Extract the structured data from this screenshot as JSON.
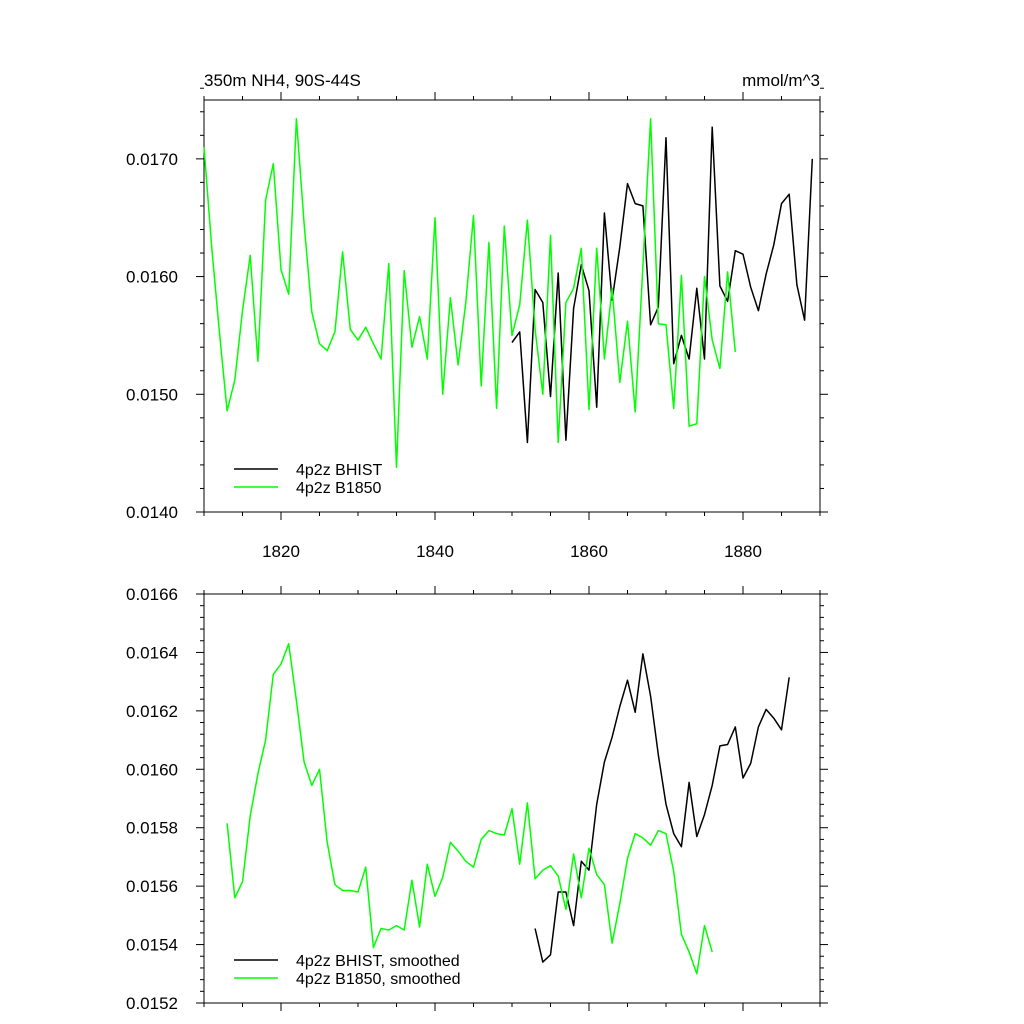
{
  "chart_data": [
    {
      "type": "line",
      "title_left": "350m NH4, 90S-44S",
      "title_right": "mmol/m^3",
      "xlabel": "",
      "ylabel": "",
      "xlim": [
        1810,
        1890
      ],
      "ylim": [
        0.014,
        0.0175
      ],
      "xticks": [
        1820,
        1840,
        1860,
        1880
      ],
      "xtick_labels": [
        "1820",
        "1840",
        "1860",
        "1880"
      ],
      "yticks": [
        0.014,
        0.015,
        0.016,
        0.017
      ],
      "ytick_labels": [
        "0.0140",
        "0.0150",
        "0.0160",
        "0.0170"
      ],
      "legend": {
        "position": "bottom-left",
        "entries": [
          "4p2z BHIST",
          "4p2z B1850"
        ]
      },
      "series": [
        {
          "name": "4p2z BHIST",
          "color": "#000000",
          "x": [
            1850,
            1851,
            1852,
            1853,
            1854,
            1855,
            1856,
            1857,
            1858,
            1859,
            1860,
            1861,
            1862,
            1863,
            1864,
            1865,
            1866,
            1867,
            1868,
            1869,
            1870,
            1871,
            1872,
            1873,
            1874,
            1875,
            1876,
            1877,
            1878,
            1879,
            1880,
            1881,
            1882,
            1883,
            1884,
            1885,
            1886,
            1887,
            1888,
            1889
          ],
          "y": [
            0.01544,
            0.01553,
            0.01459,
            0.01589,
            0.01578,
            0.01498,
            0.01603,
            0.01461,
            0.01573,
            0.0161,
            0.01588,
            0.01489,
            0.01654,
            0.0158,
            0.01625,
            0.01679,
            0.01662,
            0.0166,
            0.01559,
            0.01574,
            0.01718,
            0.01526,
            0.0155,
            0.0153,
            0.0159,
            0.0153,
            0.01727,
            0.01592,
            0.01579,
            0.01622,
            0.01619,
            0.01591,
            0.01571,
            0.01602,
            0.01627,
            0.01662,
            0.0167,
            0.01593,
            0.01563,
            0.017
          ]
        },
        {
          "name": "4p2z B1850",
          "color": "#00ff00",
          "x": [
            1810,
            1811,
            1812,
            1813,
            1814,
            1815,
            1816,
            1817,
            1818,
            1819,
            1820,
            1821,
            1822,
            1823,
            1824,
            1825,
            1826,
            1827,
            1828,
            1829,
            1830,
            1831,
            1832,
            1833,
            1834,
            1835,
            1836,
            1837,
            1838,
            1839,
            1840,
            1841,
            1842,
            1843,
            1844,
            1845,
            1846,
            1847,
            1848,
            1849,
            1850,
            1851,
            1852,
            1853,
            1854,
            1855,
            1856,
            1857,
            1858,
            1859,
            1860,
            1861,
            1862,
            1863,
            1864,
            1865,
            1866,
            1867,
            1868,
            1869,
            1870,
            1871,
            1872,
            1873,
            1874,
            1875,
            1876,
            1877,
            1878,
            1879
          ],
          "y": [
            0.0171,
            0.01625,
            0.01553,
            0.01486,
            0.01512,
            0.01571,
            0.01618,
            0.01528,
            0.01665,
            0.01696,
            0.01606,
            0.01585,
            0.01734,
            0.01645,
            0.0157,
            0.01543,
            0.01537,
            0.01553,
            0.01621,
            0.01555,
            0.01546,
            0.01557,
            0.01543,
            0.0153,
            0.01611,
            0.01438,
            0.01605,
            0.0154,
            0.01566,
            0.0153,
            0.0165,
            0.015,
            0.01582,
            0.01525,
            0.01578,
            0.01652,
            0.01507,
            0.01629,
            0.01488,
            0.01643,
            0.0155,
            0.01576,
            0.01648,
            0.01555,
            0.015,
            0.01635,
            0.01459,
            0.01578,
            0.0159,
            0.01624,
            0.01487,
            0.01624,
            0.0153,
            0.0159,
            0.0151,
            0.01562,
            0.01485,
            0.01609,
            0.01734,
            0.0156,
            0.01559,
            0.01488,
            0.01601,
            0.01473,
            0.01475,
            0.016,
            0.01546,
            0.01522,
            0.01604,
            0.01536
          ]
        }
      ]
    },
    {
      "type": "line",
      "xlabel": "",
      "ylabel": "",
      "xlim": [
        1810,
        1890
      ],
      "ylim": [
        0.0152,
        0.0166
      ],
      "xticks": [
        1820,
        1840,
        1860,
        1880
      ],
      "yticks": [
        0.0152,
        0.0154,
        0.0156,
        0.0158,
        0.016,
        0.0162,
        0.0164,
        0.0166
      ],
      "ytick_labels": [
        "0.0152",
        "0.0154",
        "0.0156",
        "0.0158",
        "0.0160",
        "0.0162",
        "0.0164",
        "0.0166"
      ],
      "legend": {
        "position": "bottom-left",
        "entries": [
          "4p2z BHIST, smoothed",
          "4p2z B1850, smoothed"
        ]
      },
      "series": [
        {
          "name": "4p2z BHIST, smoothed",
          "color": "#000000",
          "x": [
            1853,
            1854,
            1855,
            1856,
            1857,
            1858,
            1859,
            1860,
            1861,
            1862,
            1863,
            1864,
            1865,
            1866,
            1867,
            1868,
            1869,
            1870,
            1871,
            1872,
            1873,
            1874,
            1875,
            1876,
            1877,
            1878,
            1879,
            1880,
            1881,
            1882,
            1883,
            1884,
            1885,
            1886
          ],
          "y": [
            0.015455,
            0.01534,
            0.015365,
            0.01558,
            0.01558,
            0.015465,
            0.015685,
            0.015655,
            0.01588,
            0.016025,
            0.01611,
            0.016215,
            0.016305,
            0.016195,
            0.016395,
            0.01625,
            0.01605,
            0.01588,
            0.01578,
            0.015735,
            0.015955,
            0.01577,
            0.015845,
            0.015945,
            0.01608,
            0.016085,
            0.016145,
            0.01597,
            0.01602,
            0.016145,
            0.016205,
            0.016175,
            0.016135,
            0.016315
          ]
        },
        {
          "name": "4p2z B1850, smoothed",
          "color": "#00ff00",
          "x": [
            1813,
            1814,
            1815,
            1816,
            1817,
            1818,
            1819,
            1820,
            1821,
            1822,
            1823,
            1824,
            1825,
            1826,
            1827,
            1828,
            1829,
            1830,
            1831,
            1832,
            1833,
            1834,
            1835,
            1836,
            1837,
            1838,
            1839,
            1840,
            1841,
            1842,
            1843,
            1844,
            1845,
            1846,
            1847,
            1848,
            1849,
            1850,
            1851,
            1852,
            1853,
            1854,
            1855,
            1856,
            1857,
            1858,
            1859,
            1860,
            1861,
            1862,
            1863,
            1864,
            1865,
            1866,
            1867,
            1868,
            1869,
            1870,
            1871,
            1872,
            1873,
            1874,
            1875,
            1876
          ],
          "y": [
            0.015815,
            0.01556,
            0.015615,
            0.01584,
            0.015985,
            0.0161,
            0.016325,
            0.01636,
            0.01643,
            0.016235,
            0.016025,
            0.015945,
            0.016,
            0.01575,
            0.015605,
            0.015585,
            0.015585,
            0.01558,
            0.015665,
            0.01539,
            0.015455,
            0.01545,
            0.015465,
            0.01545,
            0.01562,
            0.01546,
            0.015675,
            0.015565,
            0.01563,
            0.01575,
            0.01572,
            0.015685,
            0.015665,
            0.01576,
            0.01579,
            0.01578,
            0.015775,
            0.015865,
            0.015675,
            0.015885,
            0.015625,
            0.015655,
            0.01567,
            0.015635,
            0.01552,
            0.01571,
            0.01556,
            0.01573,
            0.01564,
            0.015605,
            0.015405,
            0.01554,
            0.015695,
            0.01578,
            0.015765,
            0.01574,
            0.01579,
            0.01578,
            0.01565,
            0.015435,
            0.015375,
            0.0153,
            0.015465,
            0.015375
          ]
        }
      ]
    }
  ]
}
